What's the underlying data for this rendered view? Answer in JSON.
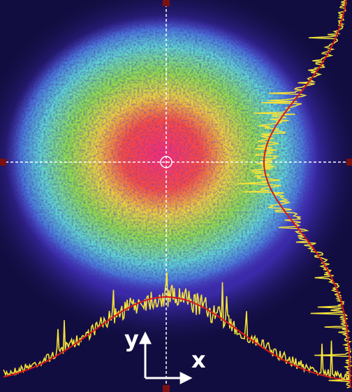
{
  "axes": {
    "y_label": "y",
    "x_label": "x"
  }
}
